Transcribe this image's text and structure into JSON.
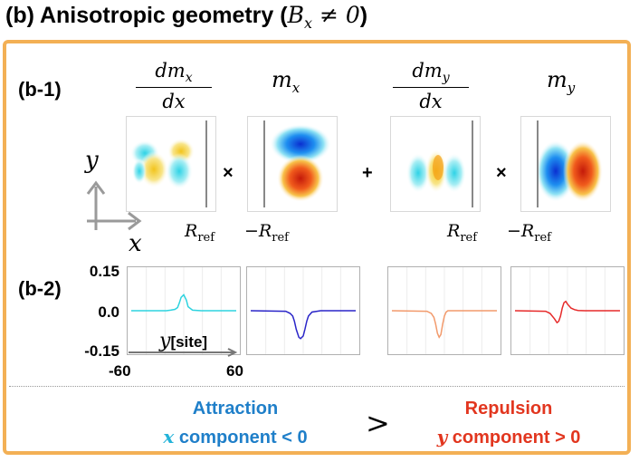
{
  "title": {
    "text": "(b) Anisotropic geometry (",
    "math": "B",
    "math_sub": "x",
    "math_rest": " ≠ 0",
    "close": ")"
  },
  "section_b1": {
    "label": "(b-1)"
  },
  "section_b2": {
    "label": "(b-2)"
  },
  "terms": {
    "t1": {
      "num": "dm",
      "num_sub": "x",
      "den": "dx"
    },
    "t2": {
      "var": "m",
      "sub": "x"
    },
    "t3": {
      "num": "dm",
      "num_sub": "y",
      "den": "dx"
    },
    "t4": {
      "var": "m",
      "sub": "y"
    }
  },
  "operators": {
    "times1": "×",
    "plus": "+",
    "times2": "×"
  },
  "axes": {
    "y": "y",
    "x": "x"
  },
  "rref": {
    "pos": "R",
    "neg": "−R",
    "sub": "ref"
  },
  "chart_data": {
    "type": "line",
    "x_ticks": [
      "-60",
      "60"
    ],
    "y_ticks": [
      "0.15",
      "0.0",
      "-0.15"
    ],
    "xlabel": {
      "var": "y",
      "unit": "[site]"
    },
    "xlim": [
      -60,
      60
    ],
    "ylim": [
      -0.15,
      0.15
    ],
    "series": [
      {
        "color": "#2ed3df",
        "x": [
          -60,
          -20,
          -15,
          -10,
          -7,
          -5,
          -3,
          0,
          3,
          5,
          10,
          20,
          60
        ],
        "y": [
          0,
          0,
          0.002,
          0.005,
          0.012,
          0.03,
          0.05,
          0.06,
          0.04,
          0.015,
          0.002,
          0,
          0
        ]
      },
      {
        "color": "#2a25c8",
        "x": [
          -60,
          -20,
          -15,
          -12,
          -10,
          -8,
          -5,
          -3,
          0,
          2,
          4,
          6,
          10,
          20,
          60
        ],
        "y": [
          0,
          -0.002,
          -0.01,
          -0.02,
          -0.04,
          -0.07,
          -0.1,
          -0.105,
          -0.095,
          -0.07,
          -0.04,
          -0.02,
          -0.005,
          0,
          0
        ]
      },
      {
        "color": "#f29a6c",
        "x": [
          -60,
          -20,
          -15,
          -12,
          -10,
          -8,
          -6,
          -4,
          -2,
          0,
          2,
          4,
          8,
          20,
          60
        ],
        "y": [
          0,
          -0.002,
          -0.01,
          -0.025,
          -0.05,
          -0.085,
          -0.1,
          -0.09,
          -0.05,
          -0.02,
          -0.005,
          0,
          0,
          0,
          0
        ]
      },
      {
        "color": "#e62a2a",
        "x": [
          -60,
          -25,
          -20,
          -15,
          -12,
          -10,
          -8,
          -6,
          -4,
          -2,
          0,
          4,
          8,
          12,
          20,
          60
        ],
        "y": [
          0,
          -0.002,
          -0.01,
          -0.03,
          -0.045,
          -0.04,
          -0.02,
          0.01,
          0.03,
          0.035,
          0.025,
          0.01,
          0.004,
          0.001,
          0,
          0
        ]
      }
    ]
  },
  "bottom": {
    "left_line1": "Attraction",
    "left_var": "x",
    "left_line2": " component < 0",
    "comparison": ">",
    "right_line1": "Repulsion",
    "right_var": "y",
    "right_line2": " component > 0"
  },
  "colors": {
    "frame": "#f3b055",
    "attraction": "#1f7fc9",
    "attraction_var": "#24b3d9",
    "repulsion": "#e2361f"
  },
  "icons": {
    "axis_arrows": "axis-arrows-icon"
  }
}
